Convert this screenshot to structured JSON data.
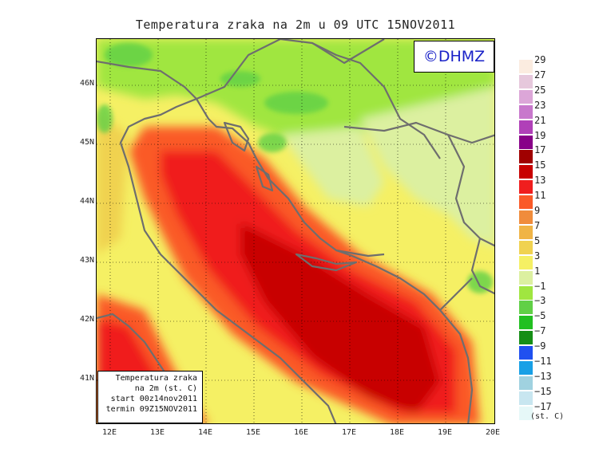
{
  "title": "Temperatura zraka na 2m u 09 UTC 15NOV2011",
  "logo": "©DHMZ",
  "infobox": {
    "line1": "Temperatura zraka",
    "line2": "na 2m (st. C)",
    "line3": "start 00z14nov2011",
    "line4": "termin 09Z15NOV2011"
  },
  "lat_labels": [
    "46N",
    "45N",
    "44N",
    "43N",
    "42N",
    "41N"
  ],
  "lat_values": [
    46,
    45,
    44,
    43,
    42,
    41
  ],
  "lon_labels": [
    "12E",
    "13E",
    "14E",
    "15E",
    "16E",
    "17E",
    "18E",
    "19E",
    "20E"
  ],
  "lon_values": [
    12,
    13,
    14,
    15,
    16,
    17,
    18,
    19,
    20
  ],
  "legend": {
    "labels": [
      "29",
      "27",
      "25",
      "23",
      "21",
      "19",
      "17",
      "15",
      "13",
      "11",
      "9",
      "7",
      "5",
      "3",
      "1",
      "−1",
      "−3",
      "−5",
      "−7",
      "−9",
      "−11",
      "−13",
      "−15",
      "−17"
    ],
    "colors": [
      "#fbece0",
      "#e6c8dc",
      "#dca6d8",
      "#c878cc",
      "#b040b8",
      "#880088",
      "#a00000",
      "#c80000",
      "#f01e1e",
      "#fa5a28",
      "#f08c3c",
      "#f0b446",
      "#f0d250",
      "#f5f064",
      "#dcf0a0",
      "#a0e640",
      "#60d046",
      "#22c021",
      "#168e16",
      "#2050f0",
      "#18a0e6",
      "#a0d2e0",
      "#c8e6f0",
      "#e6f8f8"
    ],
    "unit": "(st. C)"
  }
}
